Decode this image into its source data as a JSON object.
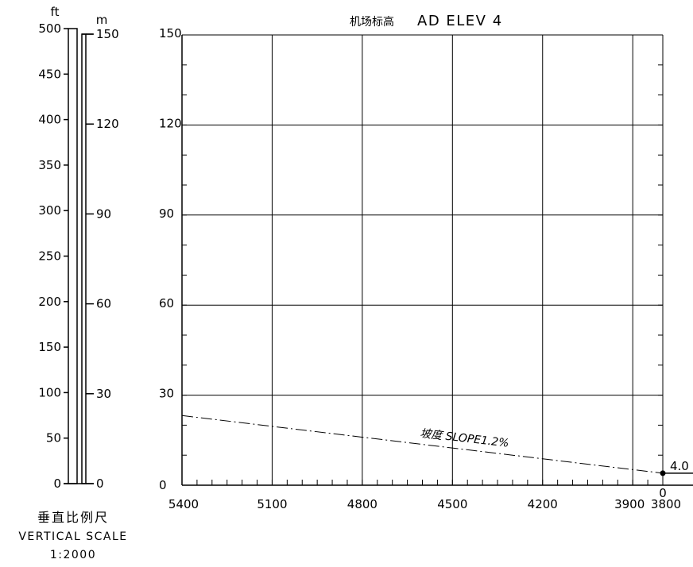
{
  "title": {
    "cn": "机场标高",
    "en": "AD ELEV 4"
  },
  "vertical_scale": {
    "ft_unit": "ft",
    "m_unit": "m",
    "ft_ticks": [
      0,
      50,
      100,
      150,
      200,
      250,
      300,
      350,
      400,
      450,
      500
    ],
    "m_ticks": [
      0,
      30,
      60,
      90,
      120,
      150
    ],
    "label_cn": "垂直比例尺",
    "label_en": "VERTICAL SCALE",
    "ratio": "1:2000"
  },
  "chart_data": {
    "type": "line",
    "title": "机场标高 AD ELEV 4",
    "xlabel": "",
    "ylabel": "",
    "x_ticks": [
      5400,
      5100,
      4800,
      4500,
      4200,
      3900,
      3800
    ],
    "y_ticks": [
      0,
      30,
      60,
      90,
      120,
      150
    ],
    "xlim": [
      5400,
      3800
    ],
    "ylim": [
      0,
      150
    ],
    "x_reversed": true,
    "grid": true,
    "threshold_marker": "0",
    "series": [
      {
        "name": "",
        "style": "dash-dot",
        "x": [
          5400,
          3800
        ],
        "y": [
          23.2,
          4.0
        ],
        "label": "坡度 SLOPE1.2%"
      }
    ],
    "point": {
      "x": 3800,
      "y": 4.0,
      "label": "4.0"
    }
  }
}
